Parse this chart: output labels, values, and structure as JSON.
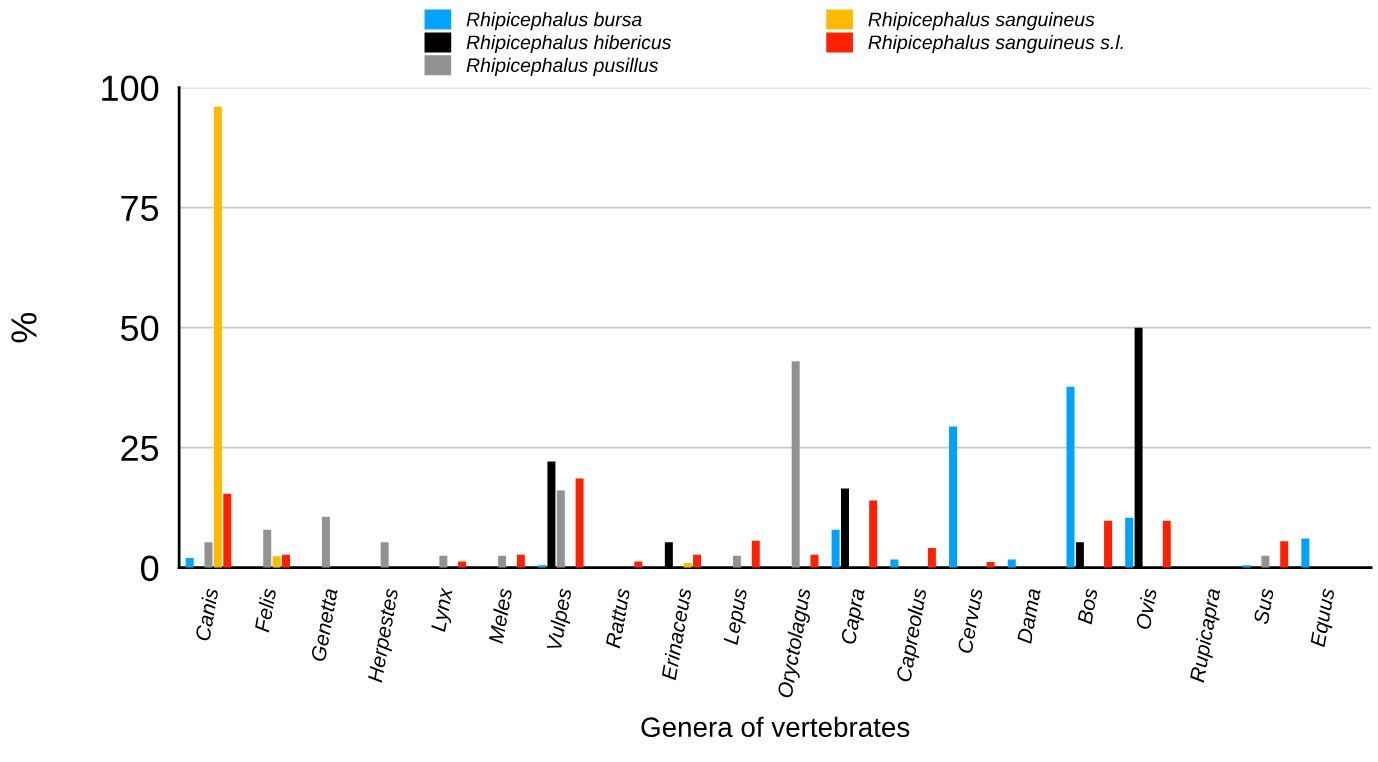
{
  "chart_data": {
    "type": "bar",
    "xlabel": "Genera of vertebrates",
    "ylabel": "%",
    "categories": [
      "Canis",
      "Felis",
      "Genetta",
      "Herpestes",
      "Lynx",
      "Meles",
      "Vulpes",
      "Rattus",
      "Erinaceus",
      "Lepus",
      "Oryctolagus",
      "Capra",
      "Capreolus",
      "Cervus",
      "Dama",
      "Bos",
      "Ovis",
      "Rupicapra",
      "Sus",
      "Equus"
    ],
    "series": [
      {
        "name": "Rhipicephalus bursa",
        "color": "#00a2ff",
        "values": [
          2.0,
          0,
          0,
          0,
          0,
          0,
          0.5,
          0,
          0,
          0,
          0,
          7.9,
          1.7,
          29.4,
          1.7,
          37.7,
          10.4,
          0,
          0.5,
          6.1
        ]
      },
      {
        "name": "Rhipicephalus hibericus",
        "color": "#000000",
        "values": [
          0,
          0,
          0,
          0,
          0,
          0,
          22.1,
          0,
          5.3,
          0,
          0,
          16.5,
          0,
          0,
          0,
          5.3,
          50,
          0,
          0,
          0
        ]
      },
      {
        "name": "Rhipicephalus pusillus",
        "color": "#929292",
        "values": [
          5.3,
          7.9,
          10.6,
          5.3,
          2.5,
          2.5,
          16.1,
          0,
          0,
          2.5,
          43.0,
          0,
          0,
          0,
          0,
          0,
          0,
          0,
          2.5,
          0
        ]
      },
      {
        "name": "Rhipicephalus sanguineus",
        "color": "#ffba00",
        "values": [
          96.0,
          2.4,
          0,
          0,
          0,
          0,
          0,
          0,
          1.0,
          0,
          0,
          0,
          0,
          0,
          0,
          0,
          0,
          0,
          0,
          0
        ]
      },
      {
        "name": "Rhipicephalus sanguineus s.l.",
        "color": "#ff2100",
        "values": [
          15.4,
          2.7,
          0,
          0,
          1.3,
          2.7,
          18.6,
          1.3,
          2.7,
          5.6,
          2.7,
          14.0,
          4.1,
          1.2,
          0,
          9.8,
          9.8,
          0,
          5.5,
          0
        ]
      }
    ],
    "ylim": [
      0,
      100
    ],
    "yticks": [
      0,
      25,
      50,
      75,
      100
    ],
    "grid": "y",
    "legend": "top"
  }
}
